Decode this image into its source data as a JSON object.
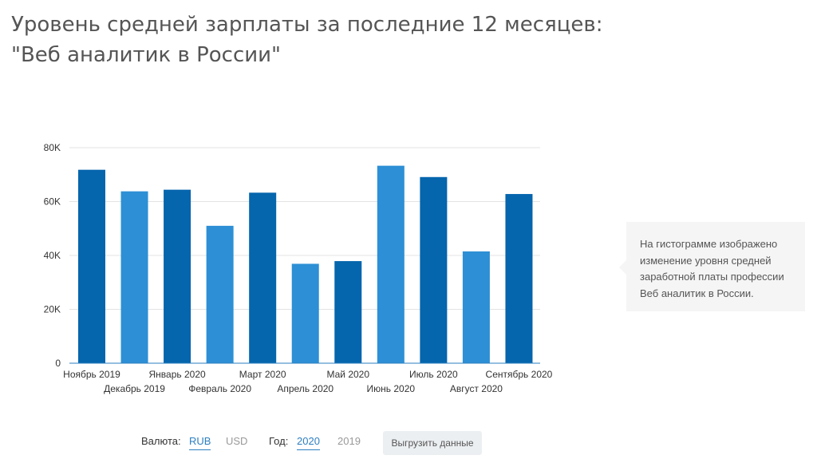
{
  "page": {
    "title_line1": "Уровень средней зарплаты за последние 12 месяцев:",
    "title_line2": "\"Веб аналитик в России\""
  },
  "note": {
    "text": "На гистограмме изображено изменение уровня средней заработной платы профессии Веб аналитик в России."
  },
  "controls": {
    "currency_label": "Валюта:",
    "currency_options": [
      "RUB",
      "USD"
    ],
    "currency_selected": "RUB",
    "year_label": "Год:",
    "year_options": [
      "2020",
      "2019"
    ],
    "year_selected": "2020",
    "export_label": "Выгрузить данные"
  },
  "colors": {
    "dark_bar": "#0565ad",
    "light_bar": "#2d8fd5",
    "grid": "#e3e3e3",
    "axis": "#2d7fc1",
    "accent": "#2d7fc1"
  },
  "chart_data": {
    "type": "bar",
    "title": "",
    "xlabel": "",
    "ylabel": "",
    "ylim": [
      0,
      80000
    ],
    "yticks": [
      0,
      20000,
      40000,
      60000,
      80000
    ],
    "ytick_labels": [
      "0",
      "20K",
      "40K",
      "60K",
      "80K"
    ],
    "grid": true,
    "categories": [
      "Ноябрь 2019",
      "Декабрь 2019",
      "Январь 2020",
      "Февраль 2020",
      "Март 2020",
      "Апрель 2020",
      "Май 2020",
      "Июнь 2020",
      "Июль 2020",
      "Август 2020",
      "Сентябрь 2020"
    ],
    "values": [
      71800,
      63800,
      64400,
      51000,
      63300,
      36900,
      37900,
      73300,
      69100,
      41500,
      62800
    ]
  }
}
